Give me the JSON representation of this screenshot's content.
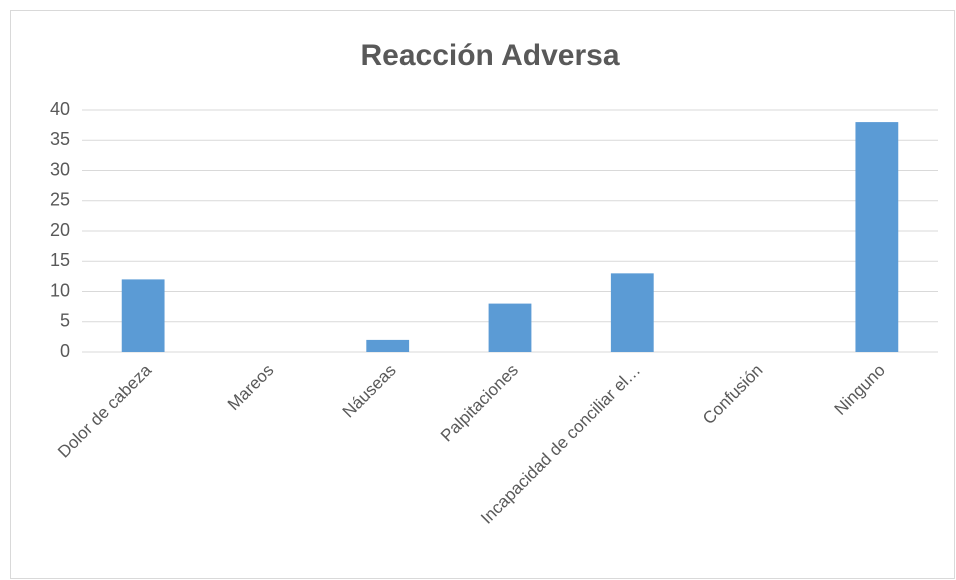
{
  "chart_data": {
    "type": "bar",
    "title": "Reacción Adversa",
    "categories": [
      "Dolor de cabeza",
      "Mareos",
      "Náuseas",
      "Palpitaciones",
      "Incapacidad de conciliar el…",
      "Confusión",
      "Ninguno"
    ],
    "values": [
      12,
      0,
      2,
      8,
      13,
      0,
      38
    ],
    "color": "#5b9bd5",
    "ylim": [
      0,
      40
    ],
    "yticks": [
      0,
      5,
      10,
      15,
      20,
      25,
      30,
      35,
      40
    ],
    "grid": true
  }
}
